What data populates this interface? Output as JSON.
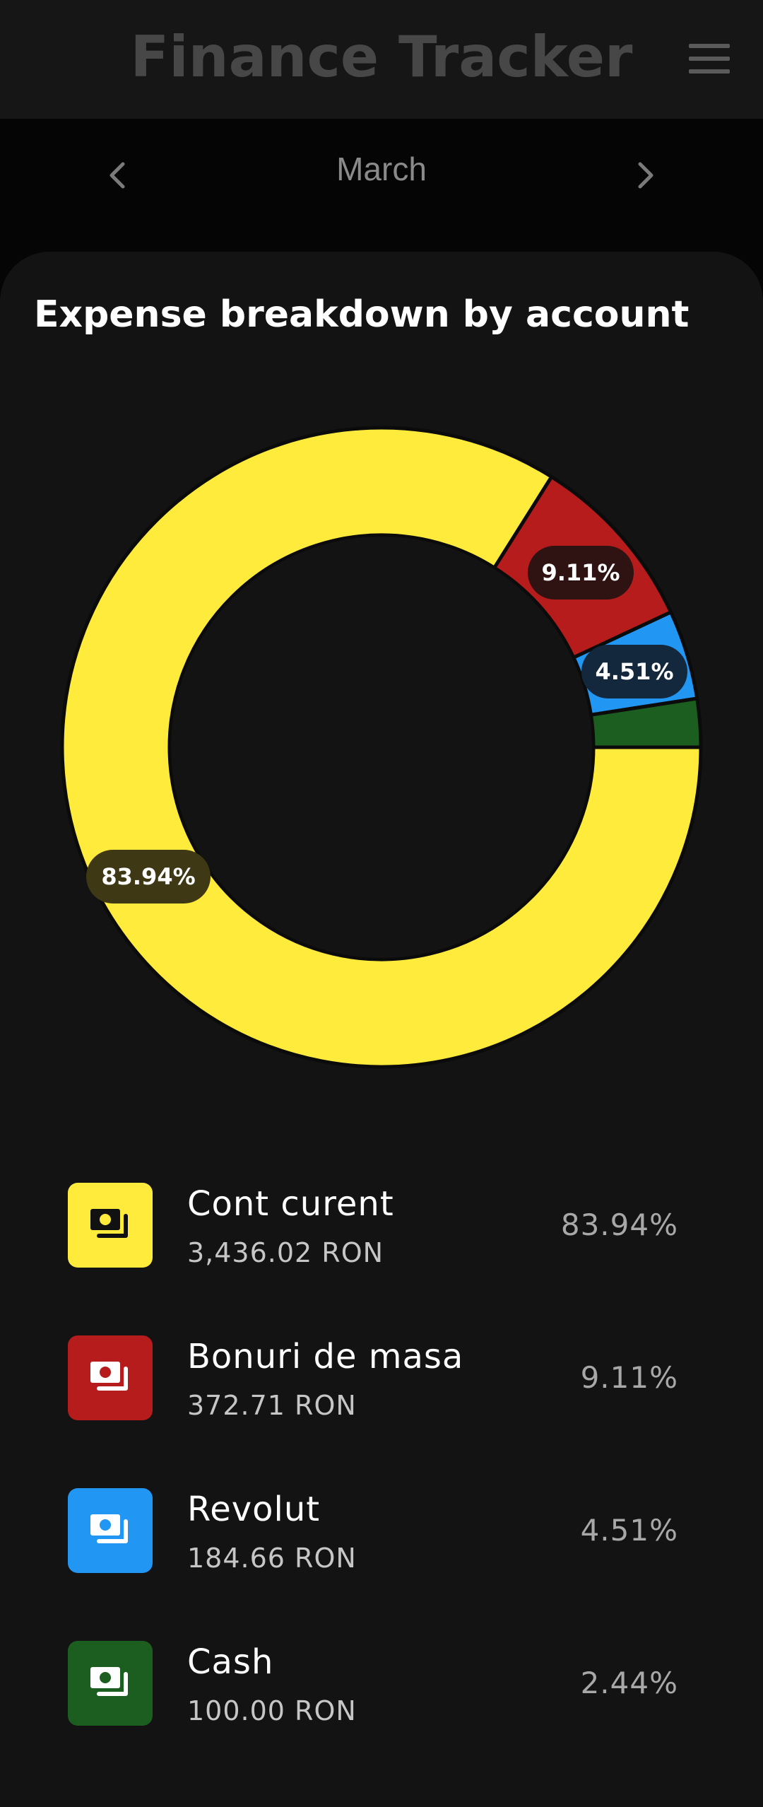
{
  "header": {
    "title": "Finance Tracker",
    "menu_icon": "hamburger-menu-icon"
  },
  "month_nav": {
    "month": "March",
    "prev_icon": "chevron-left-icon",
    "next_icon": "chevron-right-icon"
  },
  "card": {
    "title": "Expense breakdown by account"
  },
  "chart_data": {
    "type": "pie",
    "title": "Expense breakdown by account",
    "slices": [
      {
        "label": "Cont curent",
        "value": 83.94,
        "display": "83.94%",
        "color": "#ffeb3b"
      },
      {
        "label": "Bonuri de masa",
        "value": 9.11,
        "display": "9.11%",
        "color": "#b71c1c"
      },
      {
        "label": "Revolut",
        "value": 4.51,
        "display": "4.51%",
        "color": "#2196f3"
      },
      {
        "label": "Cash",
        "value": 2.44,
        "display": "",
        "color": "#1b5e20"
      }
    ]
  },
  "accounts": [
    {
      "name": "Cont curent",
      "amount": "3,436.02 RON",
      "percent": "83.94%",
      "color": "#ffeb3b",
      "icon": "money-icon"
    },
    {
      "name": "Bonuri de masa",
      "amount": "372.71 RON",
      "percent": "9.11%",
      "color": "#b71c1c",
      "icon": "money-icon"
    },
    {
      "name": "Revolut",
      "amount": "184.66 RON",
      "percent": "4.51%",
      "color": "#2196f3",
      "icon": "money-icon"
    },
    {
      "name": "Cash",
      "amount": "100.00 RON",
      "percent": "2.44%",
      "color": "#1b5e20",
      "icon": "money-icon"
    }
  ]
}
